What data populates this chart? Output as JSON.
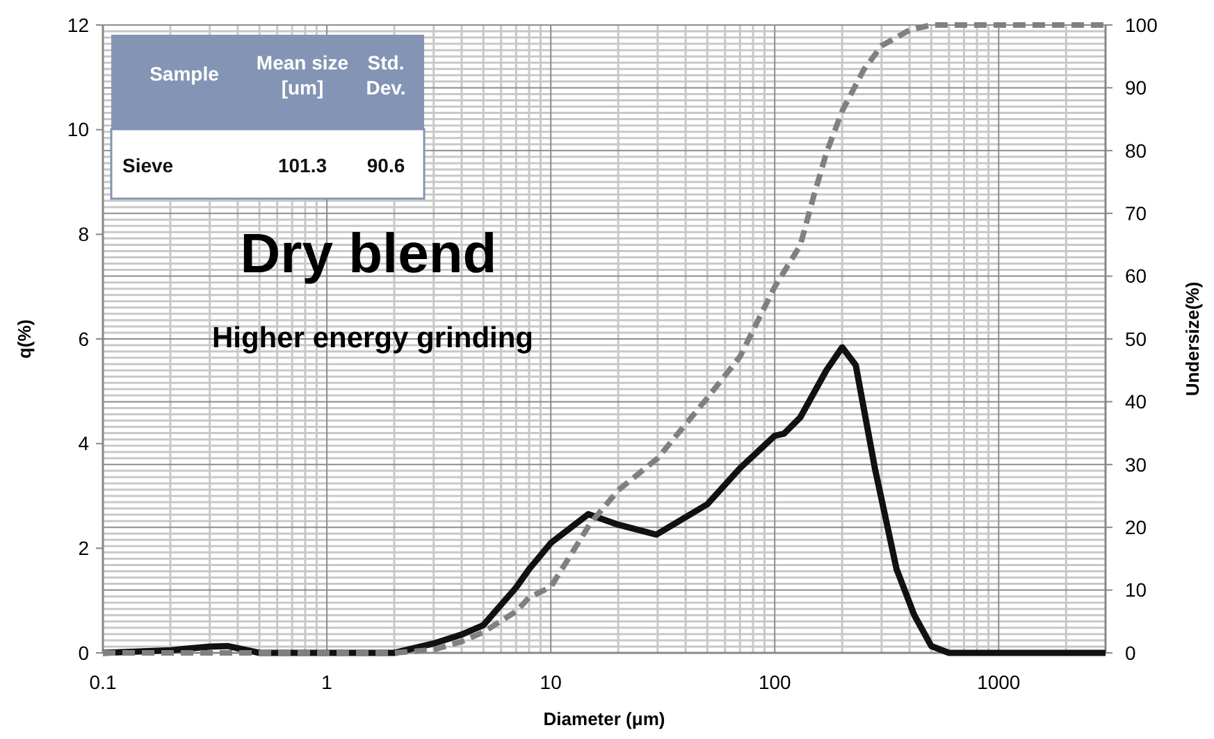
{
  "chart_data": {
    "type": "line",
    "title": "Dry blend",
    "subtitle": "Higher energy grinding",
    "xlabel": "Diameter (μm)",
    "ylabel": "q(%)",
    "y2label": "Undersize(%)",
    "annotations": [
      "Sample",
      "Mean size [um]",
      "Std. Dev.",
      "Sieve",
      "101.3",
      "90.6"
    ],
    "log": "x",
    "grid": true,
    "xlim": [
      0.1,
      3000
    ],
    "xticks": [
      0.1,
      1,
      10,
      100,
      1000
    ],
    "ylim": [
      0,
      12
    ],
    "yticks": [
      0,
      2,
      4,
      6,
      8,
      10,
      12
    ],
    "y2lim": [
      0,
      100
    ],
    "y2ticks": [
      0,
      10,
      20,
      30,
      40,
      50,
      60,
      70,
      80,
      90,
      100
    ],
    "series": [
      {
        "color": "#111111",
        "line_style": "solid",
        "x": [
          0.1,
          0.2,
          0.3,
          0.36,
          0.5,
          2,
          3,
          4,
          5,
          7,
          8,
          10,
          14.7,
          20,
          29.6,
          50,
          70,
          100,
          110,
          130,
          170,
          200,
          230,
          280,
          350,
          420,
          500,
          600,
          3000
        ],
        "values": [
          0,
          0.05,
          0.12,
          0.13,
          0,
          0,
          0.18,
          0.35,
          0.53,
          1.25,
          1.6,
          2.1,
          2.65,
          2.45,
          2.26,
          2.84,
          3.53,
          4.15,
          4.19,
          4.5,
          5.4,
          5.84,
          5.5,
          3.53,
          1.6,
          0.72,
          0.13,
          0,
          0
        ]
      },
      {
        "color": "#808080",
        "line_style": "dashed",
        "axis": "y2",
        "x": [
          0.1,
          0.5,
          2,
          3,
          4,
          5,
          7,
          8,
          10,
          15,
          20,
          30,
          50,
          70,
          100,
          130,
          150,
          170,
          200,
          250,
          300,
          400,
          500,
          3000
        ],
        "values": [
          0,
          0,
          0,
          0.5,
          1.8,
          3.3,
          6.6,
          8.8,
          10.5,
          20.6,
          25.9,
          31,
          40.6,
          47.2,
          58.3,
          64.9,
          73,
          79.6,
          86.3,
          92.9,
          96.7,
          99.2,
          100,
          100
        ]
      }
    ]
  }
}
